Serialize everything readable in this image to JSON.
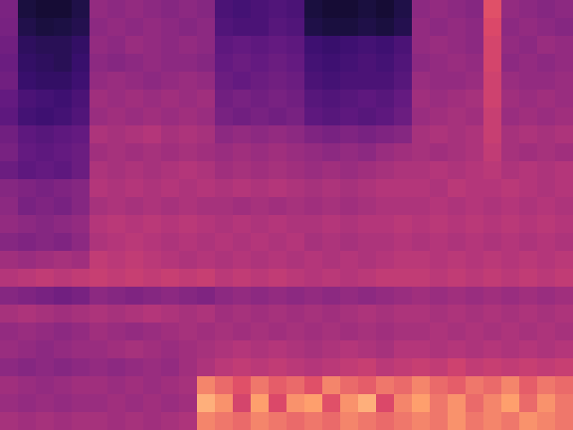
{
  "chart_data": {
    "type": "heatmap",
    "tick_labels": false,
    "color_range": [
      0,
      100
    ],
    "cells": [
      [
        45,
        12,
        10,
        10,
        14,
        52,
        50,
        52,
        50,
        48,
        50,
        48,
        30,
        28,
        30,
        32,
        30,
        12,
        10,
        10,
        12,
        10,
        14,
        50,
        52,
        50,
        48,
        76,
        52,
        50,
        48,
        50
      ],
      [
        44,
        15,
        12,
        13,
        16,
        50,
        52,
        50,
        52,
        50,
        48,
        50,
        32,
        30,
        30,
        34,
        32,
        14,
        12,
        12,
        14,
        12,
        16,
        52,
        50,
        52,
        50,
        74,
        50,
        52,
        50,
        48
      ],
      [
        42,
        20,
        18,
        18,
        22,
        52,
        50,
        54,
        52,
        50,
        52,
        50,
        36,
        38,
        36,
        38,
        36,
        26,
        24,
        26,
        28,
        26,
        30,
        52,
        54,
        52,
        50,
        72,
        52,
        50,
        54,
        52
      ],
      [
        40,
        22,
        20,
        18,
        24,
        50,
        48,
        50,
        52,
        50,
        50,
        48,
        38,
        40,
        38,
        40,
        38,
        28,
        26,
        28,
        30,
        28,
        32,
        50,
        52,
        54,
        52,
        72,
        50,
        52,
        50,
        52
      ],
      [
        42,
        24,
        22,
        22,
        26,
        52,
        54,
        52,
        50,
        52,
        54,
        52,
        40,
        38,
        40,
        42,
        40,
        30,
        28,
        30,
        30,
        30,
        34,
        54,
        52,
        52,
        54,
        70,
        54,
        52,
        52,
        54
      ],
      [
        38,
        30,
        28,
        26,
        30,
        56,
        54,
        56,
        54,
        56,
        54,
        56,
        42,
        44,
        42,
        44,
        42,
        34,
        32,
        34,
        36,
        34,
        38,
        56,
        54,
        56,
        58,
        70,
        56,
        54,
        56,
        54
      ],
      [
        36,
        28,
        26,
        28,
        32,
        54,
        56,
        54,
        56,
        54,
        56,
        54,
        44,
        42,
        44,
        42,
        44,
        36,
        34,
        36,
        34,
        36,
        40,
        54,
        56,
        58,
        56,
        68,
        54,
        56,
        54,
        56
      ],
      [
        42,
        36,
        34,
        36,
        38,
        60,
        58,
        60,
        62,
        58,
        60,
        58,
        50,
        52,
        50,
        52,
        50,
        46,
        44,
        46,
        44,
        46,
        48,
        58,
        60,
        58,
        60,
        68,
        58,
        60,
        58,
        60
      ],
      [
        44,
        38,
        36,
        38,
        40,
        56,
        58,
        56,
        58,
        56,
        58,
        56,
        54,
        56,
        54,
        56,
        54,
        52,
        50,
        52,
        50,
        54,
        56,
        58,
        56,
        58,
        60,
        66,
        58,
        56,
        58,
        56
      ],
      [
        40,
        36,
        38,
        36,
        40,
        60,
        58,
        60,
        58,
        60,
        62,
        60,
        56,
        58,
        56,
        58,
        56,
        54,
        56,
        54,
        56,
        58,
        60,
        60,
        62,
        60,
        62,
        64,
        60,
        62,
        60,
        62
      ],
      [
        48,
        46,
        44,
        46,
        48,
        62,
        60,
        62,
        60,
        62,
        60,
        62,
        60,
        62,
        60,
        62,
        60,
        58,
        60,
        58,
        60,
        62,
        62,
        62,
        60,
        64,
        62,
        62,
        64,
        62,
        60,
        62
      ],
      [
        50,
        44,
        46,
        44,
        48,
        58,
        60,
        58,
        60,
        58,
        60,
        58,
        58,
        56,
        58,
        56,
        58,
        56,
        58,
        56,
        58,
        60,
        60,
        60,
        62,
        60,
        62,
        60,
        62,
        60,
        62,
        60
      ],
      [
        52,
        50,
        48,
        50,
        52,
        62,
        64,
        62,
        64,
        62,
        64,
        62,
        60,
        62,
        60,
        62,
        60,
        60,
        62,
        60,
        62,
        62,
        64,
        62,
        64,
        62,
        64,
        62,
        64,
        62,
        64,
        62
      ],
      [
        48,
        46,
        48,
        46,
        50,
        60,
        62,
        64,
        62,
        60,
        62,
        60,
        62,
        60,
        62,
        60,
        62,
        58,
        60,
        58,
        60,
        60,
        62,
        60,
        62,
        60,
        62,
        60,
        62,
        60,
        62,
        60
      ],
      [
        56,
        54,
        56,
        58,
        56,
        66,
        64,
        66,
        64,
        62,
        60,
        62,
        60,
        62,
        60,
        62,
        60,
        62,
        60,
        62,
        60,
        62,
        64,
        64,
        62,
        64,
        62,
        64,
        62,
        64,
        62,
        64
      ],
      [
        62,
        64,
        66,
        64,
        66,
        68,
        66,
        68,
        66,
        68,
        66,
        68,
        64,
        66,
        64,
        66,
        64,
        62,
        64,
        62,
        64,
        66,
        66,
        66,
        64,
        66,
        64,
        66,
        64,
        66,
        64,
        66
      ],
      [
        48,
        46,
        44,
        42,
        44,
        50,
        48,
        46,
        48,
        50,
        48,
        46,
        50,
        52,
        50,
        52,
        50,
        52,
        50,
        52,
        50,
        52,
        54,
        56,
        54,
        56,
        54,
        56,
        54,
        56,
        54,
        56
      ],
      [
        58,
        60,
        58,
        56,
        58,
        60,
        58,
        60,
        62,
        60,
        58,
        60,
        56,
        58,
        56,
        58,
        56,
        58,
        56,
        58,
        60,
        58,
        60,
        60,
        58,
        60,
        58,
        60,
        58,
        60,
        58,
        60
      ],
      [
        52,
        54,
        52,
        50,
        52,
        56,
        54,
        52,
        54,
        56,
        58,
        56,
        58,
        56,
        58,
        56,
        58,
        56,
        58,
        56,
        58,
        56,
        58,
        58,
        60,
        58,
        60,
        58,
        60,
        58,
        60,
        58
      ],
      [
        54,
        52,
        50,
        52,
        54,
        54,
        56,
        58,
        56,
        54,
        56,
        58,
        60,
        62,
        60,
        62,
        60,
        58,
        60,
        62,
        60,
        58,
        62,
        62,
        60,
        62,
        60,
        62,
        60,
        62,
        60,
        62
      ],
      [
        50,
        48,
        50,
        48,
        50,
        52,
        50,
        52,
        54,
        52,
        56,
        60,
        64,
        66,
        64,
        66,
        64,
        62,
        64,
        66,
        68,
        64,
        66,
        68,
        66,
        70,
        66,
        68,
        66,
        68,
        66,
        68
      ],
      [
        56,
        54,
        52,
        54,
        56,
        56,
        54,
        56,
        54,
        56,
        58,
        84,
        80,
        76,
        82,
        78,
        80,
        76,
        84,
        80,
        78,
        82,
        80,
        84,
        80,
        78,
        82,
        80,
        84,
        78,
        82,
        80
      ],
      [
        54,
        52,
        54,
        52,
        54,
        54,
        56,
        54,
        56,
        54,
        56,
        90,
        86,
        72,
        88,
        74,
        86,
        88,
        76,
        86,
        90,
        74,
        84,
        88,
        82,
        86,
        80,
        84,
        88,
        80,
        86,
        82
      ],
      [
        58,
        56,
        58,
        56,
        58,
        58,
        56,
        58,
        56,
        58,
        60,
        84,
        82,
        80,
        84,
        82,
        80,
        82,
        80,
        84,
        82,
        80,
        82,
        84,
        82,
        86,
        82,
        84,
        82,
        86,
        84,
        82
      ]
    ]
  }
}
